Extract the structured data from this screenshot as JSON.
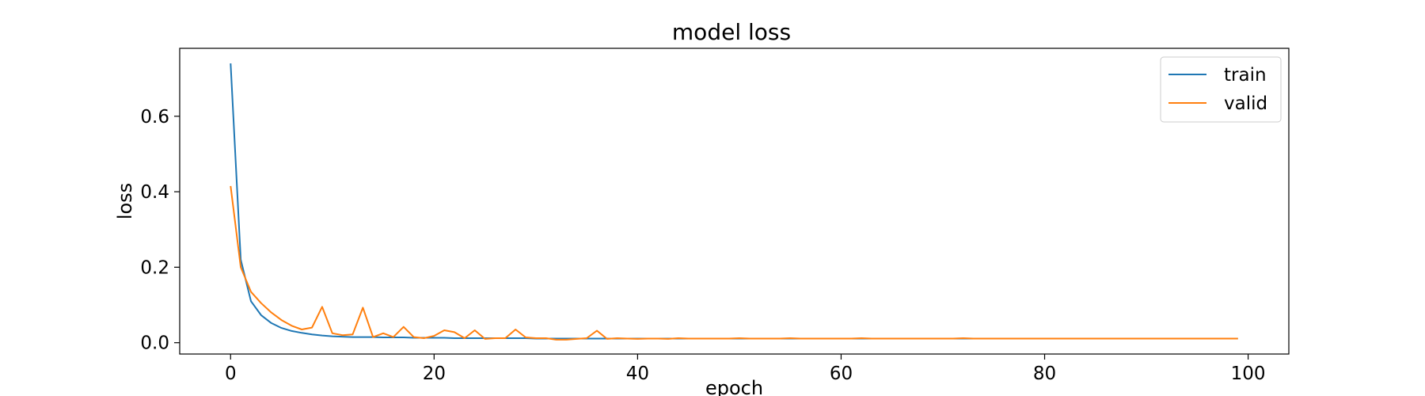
{
  "chart_data": {
    "type": "line",
    "title": "model loss",
    "xlabel": "epoch",
    "ylabel": "loss",
    "xlim": [
      -5,
      104
    ],
    "ylim": [
      -0.03,
      0.78
    ],
    "xticks": [
      0,
      20,
      40,
      60,
      80,
      100
    ],
    "yticks": [
      0.0,
      0.2,
      0.4,
      0.6
    ],
    "xtick_labels": [
      "0",
      "20",
      "40",
      "60",
      "80",
      "100"
    ],
    "ytick_labels": [
      "0.0",
      "0.2",
      "0.4",
      "0.6"
    ],
    "grid": false,
    "legend": "top-right",
    "series": [
      {
        "name": "train",
        "color": "#1f77b4",
        "x": [
          0,
          1,
          2,
          3,
          4,
          5,
          6,
          7,
          8,
          9,
          10,
          11,
          12,
          13,
          14,
          15,
          16,
          17,
          18,
          19,
          20,
          21,
          22,
          23,
          24,
          25,
          26,
          27,
          28,
          29,
          30,
          31,
          32,
          33,
          34,
          35,
          36,
          37,
          38,
          39,
          40,
          41,
          42,
          43,
          44,
          45,
          46,
          47,
          48,
          49,
          50,
          51,
          52,
          53,
          54,
          55,
          56,
          57,
          58,
          59,
          60,
          61,
          62,
          63,
          64,
          65,
          66,
          67,
          68,
          69,
          70,
          71,
          72,
          73,
          74,
          75,
          76,
          77,
          78,
          79,
          80,
          81,
          82,
          83,
          84,
          85,
          86,
          87,
          88,
          89,
          90,
          91,
          92,
          93,
          94,
          95,
          96,
          97,
          98,
          99
        ],
        "values": [
          0.74,
          0.22,
          0.11,
          0.073,
          0.052,
          0.039,
          0.031,
          0.026,
          0.022,
          0.019,
          0.017,
          0.016,
          0.015,
          0.015,
          0.015,
          0.014,
          0.014,
          0.014,
          0.013,
          0.013,
          0.013,
          0.013,
          0.012,
          0.012,
          0.012,
          0.012,
          0.012,
          0.012,
          0.012,
          0.012,
          0.011,
          0.011,
          0.011,
          0.011,
          0.011,
          0.011,
          0.011,
          0.011,
          0.011,
          0.011,
          0.011,
          0.011,
          0.011,
          0.011,
          0.011,
          0.011,
          0.011,
          0.011,
          0.011,
          0.011,
          0.011,
          0.011,
          0.011,
          0.011,
          0.011,
          0.011,
          0.011,
          0.011,
          0.011,
          0.011,
          0.011,
          0.011,
          0.011,
          0.011,
          0.011,
          0.011,
          0.011,
          0.011,
          0.011,
          0.011,
          0.011,
          0.011,
          0.011,
          0.011,
          0.011,
          0.011,
          0.011,
          0.011,
          0.011,
          0.011,
          0.011,
          0.011,
          0.011,
          0.011,
          0.011,
          0.011,
          0.011,
          0.011,
          0.011,
          0.011,
          0.011,
          0.011,
          0.011,
          0.011,
          0.011,
          0.011,
          0.011,
          0.011,
          0.011,
          0.011
        ]
      },
      {
        "name": "valid",
        "color": "#ff7f0e",
        "x": [
          0,
          1,
          2,
          3,
          4,
          5,
          6,
          7,
          8,
          9,
          10,
          11,
          12,
          13,
          14,
          15,
          16,
          17,
          18,
          19,
          20,
          21,
          22,
          23,
          24,
          25,
          26,
          27,
          28,
          29,
          30,
          31,
          32,
          33,
          34,
          35,
          36,
          37,
          38,
          39,
          40,
          41,
          42,
          43,
          44,
          45,
          46,
          47,
          48,
          49,
          50,
          51,
          52,
          53,
          54,
          55,
          56,
          57,
          58,
          59,
          60,
          61,
          62,
          63,
          64,
          65,
          66,
          67,
          68,
          69,
          70,
          71,
          72,
          73,
          74,
          75,
          76,
          77,
          78,
          79,
          80,
          81,
          82,
          83,
          84,
          85,
          86,
          87,
          88,
          89,
          90,
          91,
          92,
          93,
          94,
          95,
          96,
          97,
          98,
          99
        ],
        "values": [
          0.415,
          0.2,
          0.135,
          0.105,
          0.08,
          0.06,
          0.045,
          0.035,
          0.04,
          0.095,
          0.025,
          0.02,
          0.022,
          0.093,
          0.015,
          0.025,
          0.015,
          0.042,
          0.015,
          0.012,
          0.018,
          0.033,
          0.028,
          0.012,
          0.033,
          0.01,
          0.012,
          0.012,
          0.035,
          0.014,
          0.012,
          0.012,
          0.008,
          0.008,
          0.01,
          0.012,
          0.032,
          0.01,
          0.012,
          0.011,
          0.01,
          0.011,
          0.011,
          0.01,
          0.012,
          0.011,
          0.011,
          0.011,
          0.011,
          0.011,
          0.012,
          0.011,
          0.011,
          0.011,
          0.011,
          0.012,
          0.011,
          0.011,
          0.011,
          0.011,
          0.011,
          0.011,
          0.012,
          0.011,
          0.011,
          0.011,
          0.011,
          0.011,
          0.011,
          0.011,
          0.011,
          0.011,
          0.012,
          0.011,
          0.011,
          0.011,
          0.011,
          0.011,
          0.011,
          0.011,
          0.011,
          0.011,
          0.011,
          0.011,
          0.011,
          0.011,
          0.011,
          0.011,
          0.011,
          0.011,
          0.011,
          0.011,
          0.011,
          0.011,
          0.011,
          0.011,
          0.011,
          0.011,
          0.011,
          0.011
        ]
      }
    ]
  }
}
